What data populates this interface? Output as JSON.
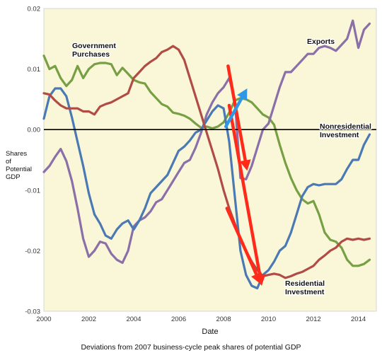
{
  "chart_data": {
    "type": "line",
    "xlabel": "Date",
    "ylabel_lines": [
      "Shares",
      "of",
      "Potential",
      "GDP"
    ],
    "caption": "Deviations from 2007 business-cycle peak shares of potential GDP",
    "xlim": [
      2000,
      2014.8
    ],
    "ylim": [
      -0.03,
      0.02
    ],
    "x_ticks": [
      2000,
      2002,
      2004,
      2006,
      2008,
      2010,
      2012,
      2014
    ],
    "y_ticks": [
      0.02,
      0.01,
      0.0,
      -0.01,
      -0.02,
      -0.03
    ],
    "y_tick_labels": [
      "0.02",
      "0.01",
      "0.00",
      "-0.01",
      "-0.02",
      "-0.03"
    ],
    "grid": false,
    "background": "#faf6d8",
    "zero_line": 0.0,
    "series": [
      {
        "name": "Government Purchases",
        "color": "#76a043",
        "x": [
          2000,
          2000.25,
          2000.5,
          2000.75,
          2001,
          2001.25,
          2001.5,
          2001.75,
          2002,
          2002.25,
          2002.5,
          2002.75,
          2003,
          2003.25,
          2003.5,
          2003.75,
          2004,
          2004.25,
          2004.5,
          2004.75,
          2005,
          2005.25,
          2005.5,
          2005.75,
          2006,
          2006.25,
          2006.5,
          2006.75,
          2007,
          2007.25,
          2007.5,
          2007.75,
          2008,
          2008.25,
          2008.5,
          2008.75,
          2009,
          2009.25,
          2009.5,
          2009.75,
          2010,
          2010.25,
          2010.5,
          2010.75,
          2011,
          2011.25,
          2011.5,
          2011.75,
          2012,
          2012.25,
          2012.5,
          2012.75,
          2013,
          2013.25,
          2013.5,
          2013.75,
          2014,
          2014.25,
          2014.5
        ],
        "y": [
          0.0122,
          0.01,
          0.0105,
          0.0085,
          0.0072,
          0.0082,
          0.0105,
          0.0085,
          0.01,
          0.0108,
          0.011,
          0.011,
          0.0108,
          0.009,
          0.0102,
          0.0092,
          0.0082,
          0.0078,
          0.0076,
          0.0062,
          0.0052,
          0.0042,
          0.0038,
          0.0028,
          0.0026,
          0.0023,
          0.0018,
          0.001,
          0.0003,
          0.0005,
          0.0002,
          0.0005,
          0.0012,
          0.0028,
          0.0048,
          0.0052,
          0.005,
          0.0045,
          0.0035,
          0.0025,
          0.002,
          0.0008,
          -0.0025,
          -0.0055,
          -0.008,
          -0.01,
          -0.0115,
          -0.0122,
          -0.0118,
          -0.014,
          -0.017,
          -0.0182,
          -0.0185,
          -0.0195,
          -0.0215,
          -0.0225,
          -0.0225,
          -0.0222,
          -0.0215
        ]
      },
      {
        "name": "Exports",
        "color": "#8a6fa8",
        "x": [
          2000,
          2000.25,
          2000.5,
          2000.75,
          2001,
          2001.25,
          2001.5,
          2001.75,
          2002,
          2002.25,
          2002.5,
          2002.75,
          2003,
          2003.25,
          2003.5,
          2003.75,
          2004,
          2004.25,
          2004.5,
          2004.75,
          2005,
          2005.25,
          2005.5,
          2005.75,
          2006,
          2006.25,
          2006.5,
          2006.75,
          2007,
          2007.25,
          2007.5,
          2007.75,
          2008,
          2008.25,
          2008.5,
          2008.75,
          2009,
          2009.25,
          2009.5,
          2009.75,
          2010,
          2010.25,
          2010.5,
          2010.75,
          2011,
          2011.25,
          2011.5,
          2011.75,
          2012,
          2012.25,
          2012.5,
          2012.75,
          2013,
          2013.25,
          2013.5,
          2013.75,
          2014,
          2014.25,
          2014.5
        ],
        "y": [
          -0.007,
          -0.006,
          -0.0045,
          -0.0032,
          -0.0052,
          -0.0085,
          -0.013,
          -0.018,
          -0.021,
          -0.02,
          -0.0185,
          -0.0188,
          -0.0205,
          -0.0215,
          -0.022,
          -0.02,
          -0.016,
          -0.015,
          -0.0145,
          -0.0135,
          -0.012,
          -0.0115,
          -0.01,
          -0.0085,
          -0.007,
          -0.0055,
          -0.005,
          -0.003,
          -0.0005,
          0.0025,
          0.0045,
          0.006,
          0.007,
          0.0085,
          0.005,
          -0.008,
          -0.0082,
          -0.006,
          -0.003,
          0.0,
          0.001,
          0.004,
          0.007,
          0.0095,
          0.0095,
          0.0105,
          0.0115,
          0.0125,
          0.0125,
          0.0135,
          0.0138,
          0.0135,
          0.013,
          0.014,
          0.015,
          0.018,
          0.0135,
          0.0165,
          0.0175
        ]
      },
      {
        "name": "Nonresidential Investment",
        "color": "#4a79b3",
        "x": [
          2000,
          2000.25,
          2000.5,
          2000.75,
          2001,
          2001.25,
          2001.5,
          2001.75,
          2002,
          2002.25,
          2002.5,
          2002.75,
          2003,
          2003.25,
          2003.5,
          2003.75,
          2004,
          2004.25,
          2004.5,
          2004.75,
          2005,
          2005.25,
          2005.5,
          2005.75,
          2006,
          2006.25,
          2006.5,
          2006.75,
          2007,
          2007.25,
          2007.5,
          2007.75,
          2008,
          2008.25,
          2008.5,
          2008.75,
          2009,
          2009.25,
          2009.5,
          2009.75,
          2010,
          2010.25,
          2010.5,
          2010.75,
          2011,
          2011.25,
          2011.5,
          2011.75,
          2012,
          2012.25,
          2012.5,
          2012.75,
          2013,
          2013.25,
          2013.5,
          2013.75,
          2014,
          2014.25,
          2014.5
        ],
        "y": [
          0.0018,
          0.0055,
          0.0068,
          0.0068,
          0.0055,
          0.002,
          -0.002,
          -0.006,
          -0.0105,
          -0.014,
          -0.0155,
          -0.0175,
          -0.018,
          -0.0165,
          -0.0155,
          -0.015,
          -0.0165,
          -0.015,
          -0.013,
          -0.0105,
          -0.0095,
          -0.0085,
          -0.0075,
          -0.0055,
          -0.0035,
          -0.0028,
          -0.0018,
          -0.0005,
          0.0,
          0.0015,
          0.003,
          0.004,
          0.0035,
          -0.002,
          -0.011,
          -0.02,
          -0.024,
          -0.0258,
          -0.0262,
          -0.024,
          -0.0232,
          -0.0218,
          -0.02,
          -0.0192,
          -0.017,
          -0.014,
          -0.011,
          -0.0095,
          -0.009,
          -0.0092,
          -0.009,
          -0.009,
          -0.009,
          -0.0082,
          -0.0065,
          -0.005,
          -0.005,
          -0.0025,
          -0.0008
        ]
      },
      {
        "name": "Residential Investment",
        "color": "#b04c45",
        "x": [
          2000,
          2000.25,
          2000.5,
          2000.75,
          2001,
          2001.25,
          2001.5,
          2001.75,
          2002,
          2002.25,
          2002.5,
          2002.75,
          2003,
          2003.25,
          2003.5,
          2003.75,
          2004,
          2004.25,
          2004.5,
          2004.75,
          2005,
          2005.25,
          2005.5,
          2005.75,
          2006,
          2006.25,
          2006.5,
          2006.75,
          2007,
          2007.25,
          2007.5,
          2007.75,
          2008,
          2008.25,
          2008.5,
          2008.75,
          2009,
          2009.25,
          2009.5,
          2009.75,
          2010,
          2010.25,
          2010.5,
          2010.75,
          2011,
          2011.25,
          2011.5,
          2011.75,
          2012,
          2012.25,
          2012.5,
          2012.75,
          2013,
          2013.25,
          2013.5,
          2013.75,
          2014,
          2014.25,
          2014.5
        ],
        "y": [
          0.006,
          0.0058,
          0.0048,
          0.004,
          0.0035,
          0.0035,
          0.0035,
          0.003,
          0.003,
          0.0025,
          0.0038,
          0.0042,
          0.0045,
          0.005,
          0.0055,
          0.006,
          0.0085,
          0.0095,
          0.0105,
          0.0112,
          0.0118,
          0.0128,
          0.0132,
          0.0138,
          0.0132,
          0.0115,
          0.0085,
          0.0055,
          0.0025,
          -0.0005,
          -0.0035,
          -0.0065,
          -0.01,
          -0.013,
          -0.0155,
          -0.018,
          -0.02,
          -0.0218,
          -0.0232,
          -0.0242,
          -0.024,
          -0.0238,
          -0.024,
          -0.0245,
          -0.0242,
          -0.0238,
          -0.0235,
          -0.023,
          -0.0225,
          -0.0215,
          -0.0208,
          -0.02,
          -0.0195,
          -0.0185,
          -0.018,
          -0.0182,
          -0.018,
          -0.0182,
          -0.018
        ]
      }
    ],
    "annotations": [
      {
        "lines": [
          "Government",
          "Purchases"
        ],
        "for": "Government Purchases"
      },
      {
        "lines": [
          "Exports"
        ],
        "for": "Exports"
      },
      {
        "lines": [
          "Nonresidential",
          "Investment"
        ],
        "for": "Nonresidential Investment"
      },
      {
        "lines": [
          "Residential",
          "Investment"
        ],
        "for": "Residential Investment"
      }
    ],
    "arrows": [
      {
        "color": "#ff2a1a",
        "from": [
          2008.2,
          0.0105
        ],
        "to": [
          2009.05,
          -0.0068
        ]
      },
      {
        "color": "#ff2a1a",
        "from": [
          2008.25,
          0.004
        ],
        "to": [
          2009.7,
          -0.0258
        ]
      },
      {
        "color": "#ff2a1a",
        "from": [
          2008.15,
          -0.013
        ],
        "to": [
          2009.65,
          -0.0255
        ]
      },
      {
        "color": "#2e97e8",
        "from": [
          2008.1,
          0.0005
        ],
        "to": [
          2009.05,
          0.0068
        ]
      }
    ]
  }
}
